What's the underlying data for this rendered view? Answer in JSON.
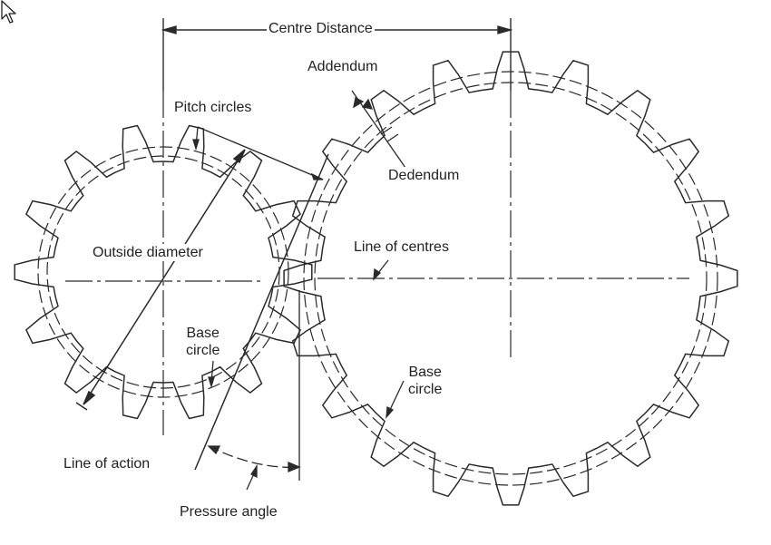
{
  "labels": {
    "centre_distance": "Centre Distance",
    "addendum": "Addendum",
    "pitch_circles": "Pitch circles",
    "dedendum": "Dedendum",
    "outside_diameter": "Outside diameter",
    "line_of_centres": "Line of centres",
    "base_circle_small": "Base\ncircle",
    "base_circle_large": "Base\ncircle",
    "line_of_action": "Line of action",
    "pressure_angle": "Pressure angle"
  },
  "gears": {
    "pinion": {
      "teeth": 14
    },
    "gear": {
      "teeth": 20
    }
  },
  "colors": {
    "ink": "#2a2a2a",
    "background": "#ffffff"
  },
  "icons": {
    "pointer": "mouse-pointer-icon"
  }
}
